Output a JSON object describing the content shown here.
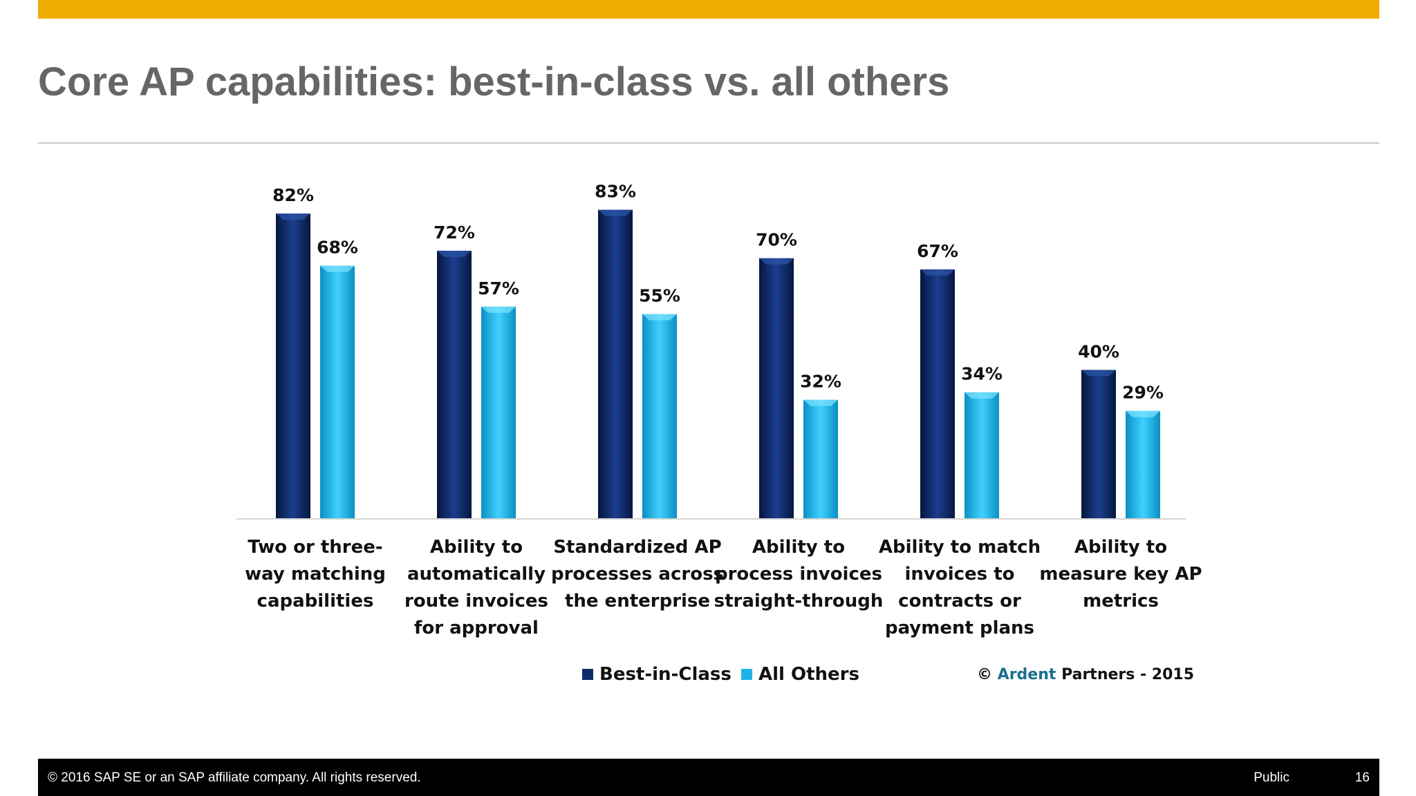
{
  "slide": {
    "title": "Core AP capabilities: best-in-class vs. all others",
    "accent_color": "#f0ab00",
    "footer": {
      "copyright": "© 2016 SAP SE or an SAP affiliate company. All rights reserved.",
      "classification": "Public",
      "page_number": "16"
    }
  },
  "chart_data": {
    "type": "bar",
    "title": "",
    "xlabel": "",
    "ylabel": "",
    "ylim": [
      0,
      100
    ],
    "grid": false,
    "legend_position": "bottom",
    "value_suffix": "%",
    "categories": [
      [
        "Two or three-",
        "way matching",
        "capabilities"
      ],
      [
        "Ability to",
        "automatically",
        "route invoices",
        "for approval"
      ],
      [
        "Standardized AP",
        "processes across",
        "the enterprise"
      ],
      [
        "Ability to",
        "process invoices",
        "straight-through"
      ],
      [
        "Ability to match",
        "invoices to",
        "contracts or",
        "payment plans"
      ],
      [
        "Ability to",
        "measure key AP",
        "metrics"
      ]
    ],
    "series": [
      {
        "name": "Best-in-Class",
        "color": "#0d2a6b",
        "values": [
          82,
          72,
          83,
          70,
          67,
          40
        ]
      },
      {
        "name": "All Others",
        "color": "#1fb2e8",
        "values": [
          68,
          57,
          55,
          32,
          34,
          29
        ]
      }
    ],
    "source": {
      "symbol": "©",
      "brand": "Ardent",
      "rest": "Partners - 2015",
      "brand_color": "#1a6f8c"
    }
  }
}
